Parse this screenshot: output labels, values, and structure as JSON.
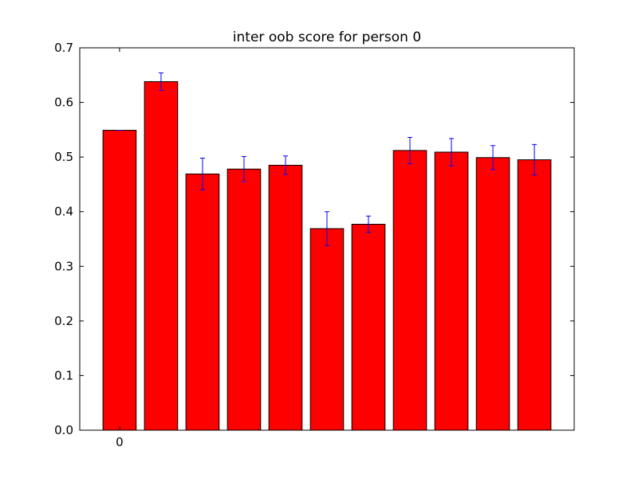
{
  "chart_data": {
    "type": "bar",
    "title": "inter oob score for person 0",
    "xlabel": "",
    "ylabel": "",
    "ylim": [
      0,
      0.7
    ],
    "yticks": [
      "0.0",
      "0.1",
      "0.2",
      "0.3",
      "0.4",
      "0.5",
      "0.6",
      "0.7"
    ],
    "xticks": [
      "0"
    ],
    "values": [
      0.549,
      0.638,
      0.469,
      0.478,
      0.485,
      0.369,
      0.377,
      0.512,
      0.509,
      0.499,
      0.495
    ],
    "errors": [
      0.0,
      0.016,
      0.029,
      0.023,
      0.017,
      0.031,
      0.015,
      0.024,
      0.025,
      0.022,
      0.028
    ],
    "bar_color": "#ff0000",
    "error_color": "#0000ff",
    "grid": false,
    "legend": "none"
  }
}
